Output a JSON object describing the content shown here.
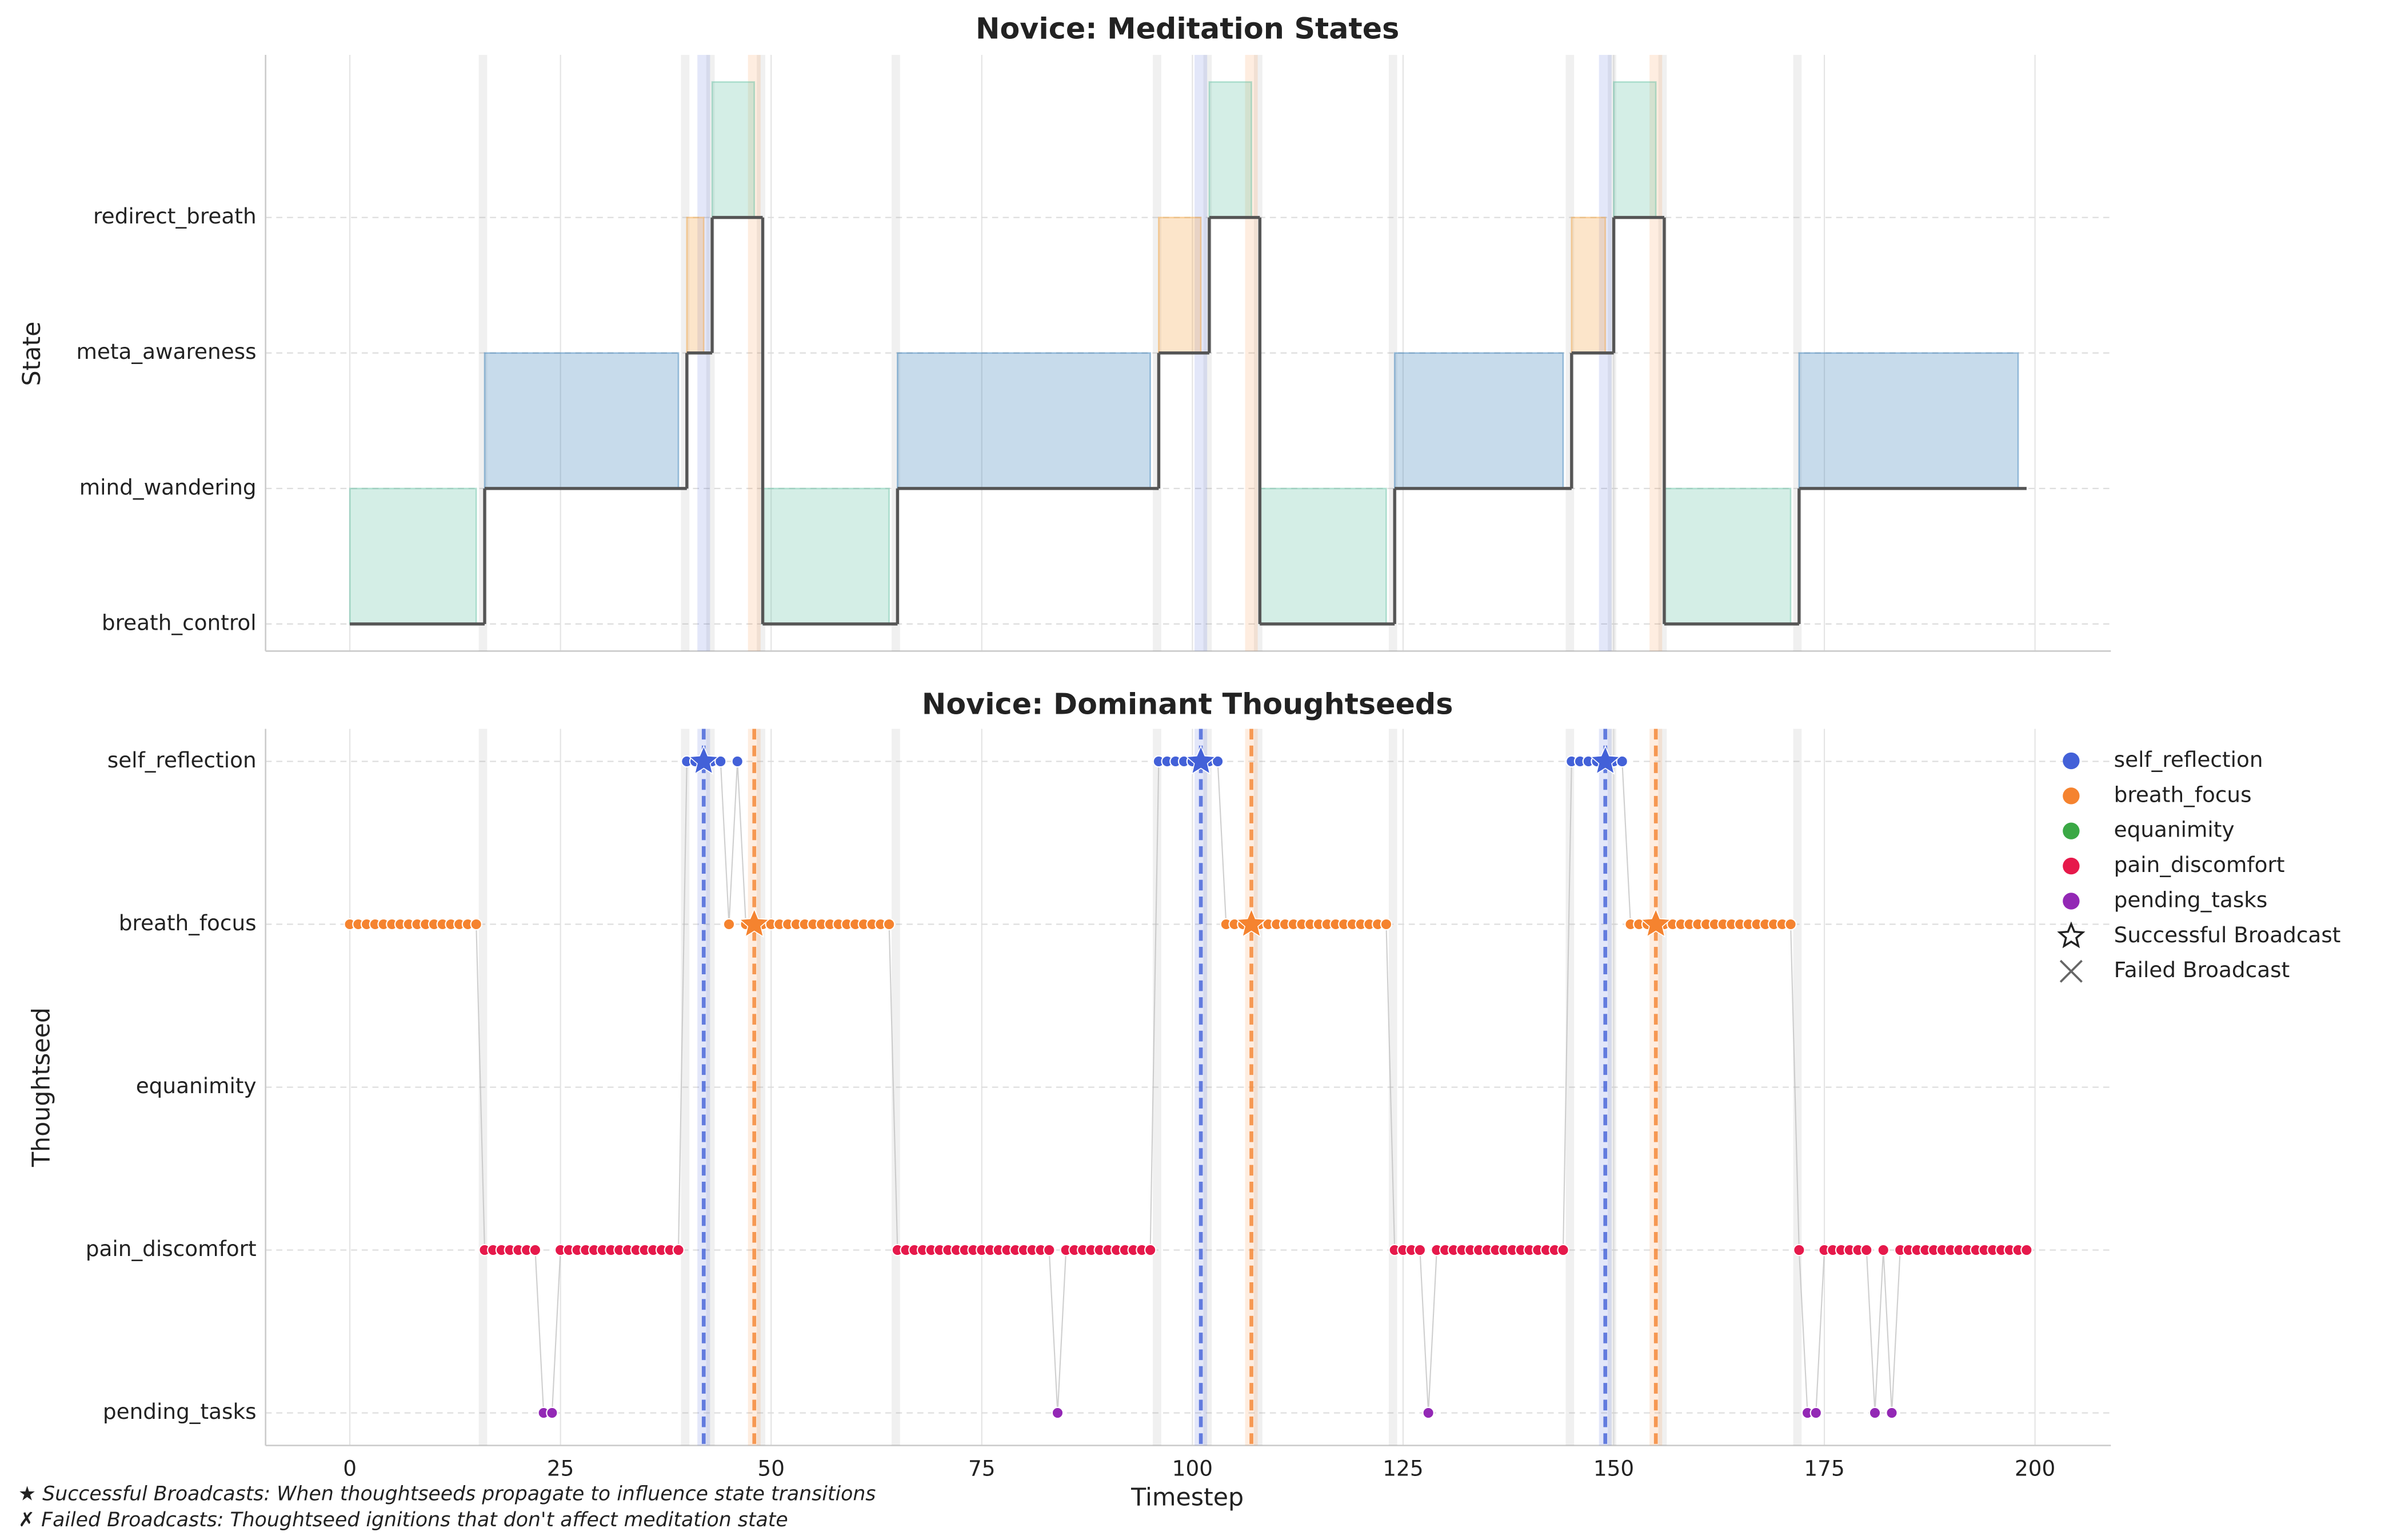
{
  "chart_data": [
    {
      "type": "step",
      "title": "Novice: Meditation States",
      "ylabel": "State",
      "categories": [
        "breath_control",
        "mind_wandering",
        "meta_awareness",
        "redirect_breath"
      ],
      "colors": [
        "#66c2a5",
        "#377eb8",
        "#f5a340",
        "#66c2a5"
      ],
      "segments": [
        {
          "state": "breath_control",
          "start": 0,
          "end": 16
        },
        {
          "state": "mind_wandering",
          "start": 16,
          "end": 40
        },
        {
          "state": "meta_awareness",
          "start": 40,
          "end": 43
        },
        {
          "state": "redirect_breath",
          "start": 43,
          "end": 49
        },
        {
          "state": "breath_control",
          "start": 49,
          "end": 65
        },
        {
          "state": "mind_wandering",
          "start": 65,
          "end": 96
        },
        {
          "state": "meta_awareness",
          "start": 96,
          "end": 102
        },
        {
          "state": "redirect_breath",
          "start": 102,
          "end": 108
        },
        {
          "state": "breath_control",
          "start": 108,
          "end": 124
        },
        {
          "state": "mind_wandering",
          "start": 124,
          "end": 145
        },
        {
          "state": "meta_awareness",
          "start": 145,
          "end": 150
        },
        {
          "state": "redirect_breath",
          "start": 150,
          "end": 156
        },
        {
          "state": "breath_control",
          "start": 156,
          "end": 172
        },
        {
          "state": "mind_wandering",
          "start": 172,
          "end": 199
        }
      ],
      "xlim": [
        -10,
        209
      ],
      "ylim": [
        -0.2,
        4.2
      ],
      "xticks": [
        0,
        25,
        50,
        75,
        100,
        125,
        150,
        175,
        200
      ],
      "grid": true
    },
    {
      "type": "scatter",
      "title": "Novice: Dominant Thoughtseeds",
      "xlabel": "Timestep",
      "ylabel": "Thoughtseed",
      "categories": [
        "pending_tasks",
        "pain_discomfort",
        "equanimity",
        "breath_focus",
        "self_reflection"
      ],
      "series": [
        {
          "name": "self_reflection",
          "color": "#4361d8"
        },
        {
          "name": "breath_focus",
          "color": "#f5832f"
        },
        {
          "name": "equanimity",
          "color": "#3aa845"
        },
        {
          "name": "pain_discomfort",
          "color": "#e6194b"
        },
        {
          "name": "pending_tasks",
          "color": "#9328b5"
        }
      ],
      "markers": [
        "Successful Broadcast",
        "Failed Broadcast"
      ],
      "runs": [
        {
          "seed": "breath_focus",
          "start": 0,
          "end": 15
        },
        {
          "seed": "pain_discomfort",
          "start": 16,
          "end": 22
        },
        {
          "seed": "pending_tasks",
          "start": 23,
          "end": 24
        },
        {
          "seed": "pain_discomfort",
          "start": 25,
          "end": 39
        },
        {
          "seed": "self_reflection",
          "start": 40,
          "end": 44
        },
        {
          "seed": "breath_focus",
          "start": 45,
          "end": 45
        },
        {
          "seed": "self_reflection",
          "start": 46,
          "end": 46
        },
        {
          "seed": "breath_focus",
          "start": 47,
          "end": 64
        },
        {
          "seed": "pain_discomfort",
          "start": 65,
          "end": 83
        },
        {
          "seed": "pending_tasks",
          "start": 84,
          "end": 84
        },
        {
          "seed": "pain_discomfort",
          "start": 85,
          "end": 95
        },
        {
          "seed": "self_reflection",
          "start": 96,
          "end": 103
        },
        {
          "seed": "breath_focus",
          "start": 104,
          "end": 123
        },
        {
          "seed": "pain_discomfort",
          "start": 124,
          "end": 127
        },
        {
          "seed": "pending_tasks",
          "start": 128,
          "end": 128
        },
        {
          "seed": "pain_discomfort",
          "start": 129,
          "end": 144
        },
        {
          "seed": "self_reflection",
          "start": 145,
          "end": 151
        },
        {
          "seed": "breath_focus",
          "start": 152,
          "end": 171
        },
        {
          "seed": "pain_discomfort",
          "start": 172,
          "end": 172
        },
        {
          "seed": "pending_tasks",
          "start": 173,
          "end": 174
        },
        {
          "seed": "pain_discomfort",
          "start": 175,
          "end": 180
        },
        {
          "seed": "pending_tasks",
          "start": 181,
          "end": 181
        },
        {
          "seed": "pain_discomfort",
          "start": 182,
          "end": 182
        },
        {
          "seed": "pending_tasks",
          "start": 183,
          "end": 183
        },
        {
          "seed": "pain_discomfort",
          "start": 184,
          "end": 199
        }
      ],
      "broadcasts": [
        {
          "seed": "self_reflection",
          "t": 42
        },
        {
          "seed": "breath_focus",
          "t": 48
        },
        {
          "seed": "self_reflection",
          "t": 101
        },
        {
          "seed": "breath_focus",
          "t": 107
        },
        {
          "seed": "self_reflection",
          "t": 149
        },
        {
          "seed": "breath_focus",
          "t": 155
        }
      ],
      "xlim": [
        -10,
        209
      ],
      "ylim": [
        -0.2,
        4.2
      ],
      "xticks": [
        0,
        25,
        50,
        75,
        100,
        125,
        150,
        175,
        200
      ],
      "grid": true,
      "legend": "right"
    }
  ],
  "footnotes": [
    "★ Successful Broadcasts: When thoughtseeds propagate to influence state transitions",
    "✗ Failed Broadcasts: Thoughtseed ignitions that don't affect meditation state"
  ]
}
